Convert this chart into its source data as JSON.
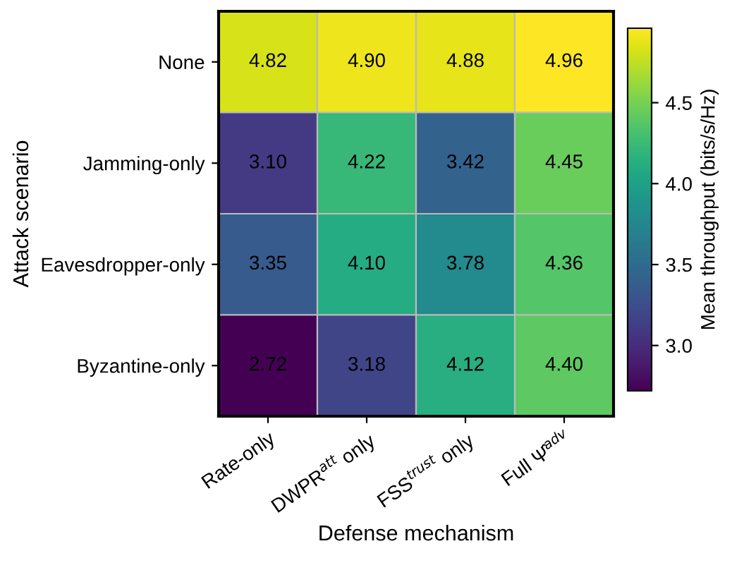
{
  "chart_data": {
    "type": "heatmap",
    "xlabel": "Defense mechanism",
    "ylabel": "Attack scenario",
    "clabel": "Mean throughput (bits/s/Hz)",
    "categories": [
      "Rate-only",
      "DWPR$^{att}$ only",
      "FSS$^{trust}$ only",
      "Full Ψ̂$^{adv}$"
    ],
    "y_categories": [
      "None",
      "Jamming-only",
      "Eavesdropper-only",
      "Byzantine-only"
    ],
    "cells": [
      [
        4.82,
        4.9,
        4.88,
        4.96
      ],
      [
        3.1,
        4.22,
        3.42,
        4.45
      ],
      [
        3.35,
        4.1,
        3.78,
        4.36
      ],
      [
        2.72,
        3.18,
        4.12,
        4.4
      ]
    ],
    "cell_labels": [
      [
        "4.82",
        "4.90",
        "4.88",
        "4.96"
      ],
      [
        "3.10",
        "4.22",
        "3.42",
        "4.45"
      ],
      [
        "3.35",
        "4.10",
        "3.78",
        "4.36"
      ],
      [
        "2.72",
        "3.18",
        "4.12",
        "4.40"
      ]
    ],
    "clim": [
      2.72,
      4.96
    ],
    "cticks": [
      {
        "value": 3.0,
        "label": "3.0"
      },
      3.5,
      {
        "value": 4.0,
        "label": "4.0"
      },
      4.5
    ]
  }
}
